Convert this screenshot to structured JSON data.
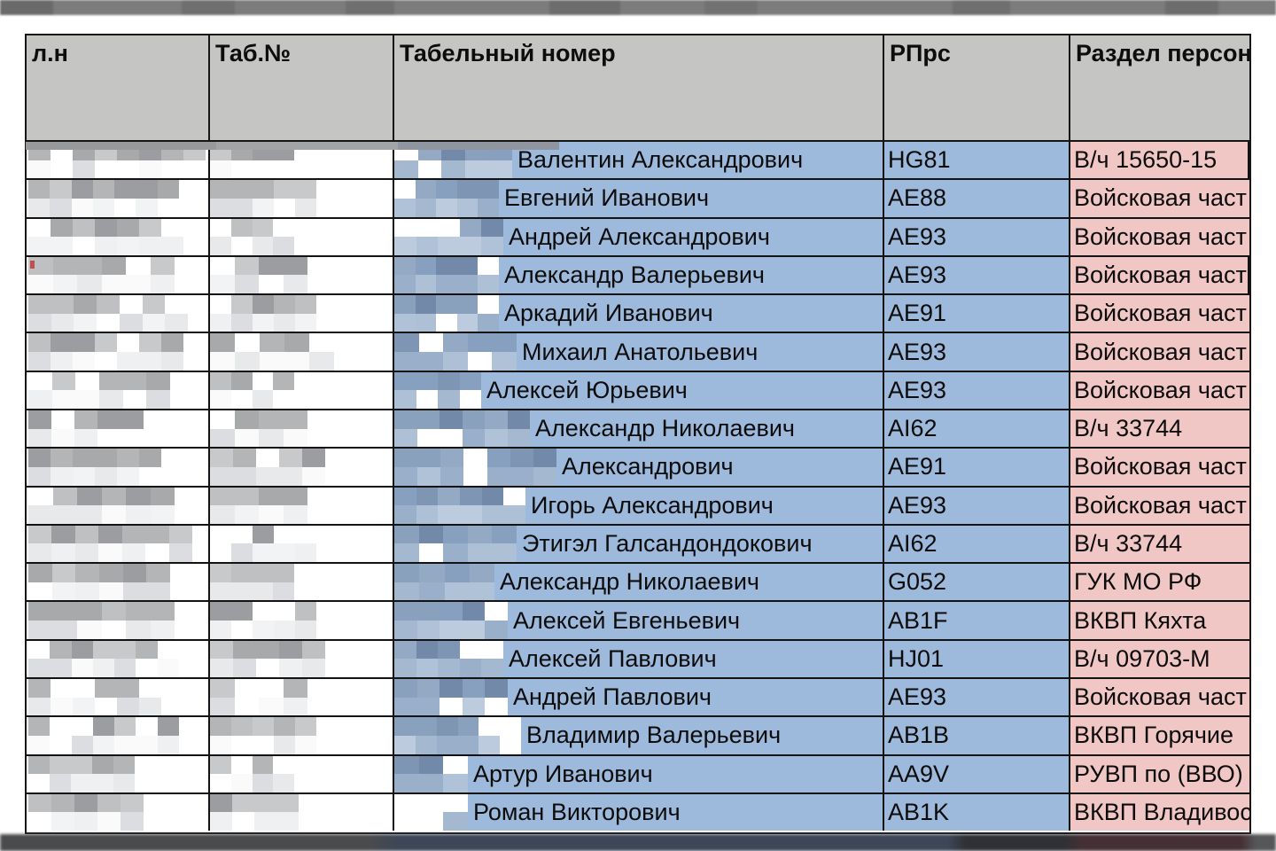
{
  "table": {
    "columns": [
      {
        "label": "л.н"
      },
      {
        "label": "Таб.№"
      },
      {
        "label": "Табельный номер"
      },
      {
        "label": "РПрс"
      },
      {
        "label": "Раздел персон"
      }
    ],
    "selected_row_index": 3,
    "rows": [
      {
        "name": "Валентин Александрович",
        "code": "HG81",
        "unit": "В/ч 15650-15",
        "blur": [
          200,
          95,
          133
        ]
      },
      {
        "name": "Евгений Иванович",
        "code": "AE88",
        "unit": "Войсковая част",
        "blur": [
          170,
          120,
          118
        ]
      },
      {
        "name": "Андрей Александрович",
        "code": "AE93",
        "unit": "Войсковая част",
        "blur": [
          175,
          95,
          123
        ]
      },
      {
        "name": "Александр Валерьевич",
        "code": "AE93",
        "unit": "Войсковая част",
        "blur": [
          165,
          110,
          118
        ]
      },
      {
        "name": "Аркадий Иванович",
        "code": "AE91",
        "unit": "Войсковая част",
        "blur": [
          180,
          120,
          118
        ]
      },
      {
        "name": "Михаил Анатольевич",
        "code": "AE93",
        "unit": "Войсковая част",
        "blur": [
          175,
          140,
          138
        ]
      },
      {
        "name": "Алексей Юрьевич",
        "code": "AE93",
        "unit": "Войсковая част",
        "blur": [
          160,
          95,
          98
        ]
      },
      {
        "name": "Александр Николаевич",
        "code": "AI62",
        "unit": "В/ч 33744",
        "blur": [
          130,
          110,
          153
        ]
      },
      {
        "name": "Александрович",
        "code": "AE91",
        "unit": "Войсковая част",
        "blur": [
          150,
          130,
          183
        ]
      },
      {
        "name": "Игорь Александрович",
        "code": "AE93",
        "unit": "Войсковая част",
        "blur": [
          165,
          110,
          148
        ]
      },
      {
        "name": "Этигэл Галсандондокович",
        "code": "AI62",
        "unit": "В/ч 33744",
        "blur": [
          185,
          120,
          138
        ]
      },
      {
        "name": "Александр Николаевич",
        "code": "G052",
        "unit": "ГУК МО РФ",
        "blur": [
          160,
          95,
          113
        ]
      },
      {
        "name": "Алексей Евгеньевич",
        "code": "AB1F",
        "unit": "ВКВП Кяхта",
        "blur": [
          165,
          120,
          128
        ]
      },
      {
        "name": "Алексей Павлович",
        "code": "HJ01",
        "unit": "В/ч 09703-М",
        "blur": [
          170,
          130,
          123
        ]
      },
      {
        "name": "Андрей Павлович",
        "code": "AE93",
        "unit": "Войсковая част",
        "blur": [
          150,
          110,
          128
        ]
      },
      {
        "name": "Владимир Валерьевич",
        "code": "AB1B",
        "unit": "ВКВП Горячие",
        "blur": [
          170,
          120,
          143
        ]
      },
      {
        "name": "Артур Иванович",
        "code": "AA9V",
        "unit": "РУВП по (ВВО)",
        "blur": [
          120,
          95,
          83
        ]
      },
      {
        "name": "Роман Викторович",
        "code": "AB1K",
        "unit": "ВКВП Владивос",
        "blur": [
          130,
          100,
          83
        ]
      }
    ]
  },
  "colors": {
    "cell_blue": "#9db9db",
    "cell_pink": "#f1c7c5",
    "header_grey": "#c5c6c3",
    "grid_line": "#131313",
    "selection_border": "#060606",
    "selection_marker_orange": "#c0504d",
    "mosaic_grey_dark": [
      "#a8a9ab",
      "#b4b5b7",
      "#bfc0c2",
      "#9c9da0",
      "#c8c9cb"
    ],
    "mosaic_grey_light": [
      "#e8e9eb",
      "#f2f3f5",
      "#dcdde0",
      "#fafafa",
      "#eef0f2"
    ],
    "mosaic_blue_dark": [
      "#7e95b4",
      "#8aa1bd",
      "#7289a9",
      "#93a9c4",
      "#87a0bf"
    ],
    "mosaic_blue_light": [
      "#a4b8d0",
      "#b0c2d8",
      "#9ab0ca",
      "#bccbde",
      "#aec0d6"
    ]
  }
}
